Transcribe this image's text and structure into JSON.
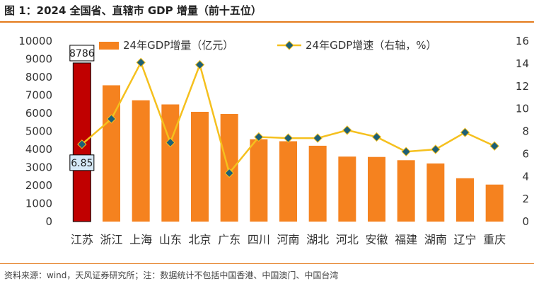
{
  "title": "图 1：2024 全国省、直辖市 GDP 增量（前十五位）",
  "source": "资料来源：wind，天风证券研究所；注：数据统计不包括中国香港、中国澳门、中国台湾",
  "colors": {
    "accent": "#e47a1b",
    "bar": "#f5821f",
    "highlight_bar": "#c00000",
    "line": "#f5c01e",
    "marker": "#1e6076",
    "label_box": "#d6eaf8"
  },
  "chart_data": {
    "type": "bar",
    "categories": [
      "江苏",
      "浙江",
      "上海",
      "山东",
      "北京",
      "广东",
      "四川",
      "河南",
      "湖北",
      "河北",
      "安徽",
      "福建",
      "湖南",
      "辽宁",
      "重庆"
    ],
    "series": [
      {
        "name": "24年GDP增量（亿元）",
        "type": "bar",
        "axis": "left",
        "color": "#f5821f",
        "values": [
          8786,
          7550,
          6720,
          6490,
          6080,
          5960,
          4560,
          4450,
          4200,
          3600,
          3580,
          3400,
          3220,
          2400,
          2050
        ]
      },
      {
        "name": "24年GDP增速（右轴，%）",
        "type": "line",
        "axis": "right",
        "color": "#f5c01e",
        "values": [
          6.85,
          9.1,
          14.1,
          7.0,
          13.9,
          4.3,
          7.5,
          7.4,
          7.4,
          8.1,
          7.5,
          6.2,
          6.4,
          7.9,
          6.7
        ]
      }
    ],
    "y_left": {
      "min": 0,
      "max": 10000,
      "ticks": [
        0,
        1000,
        2000,
        3000,
        4000,
        5000,
        6000,
        7000,
        8000,
        9000,
        10000
      ]
    },
    "y_right": {
      "min": 0,
      "max": 16,
      "ticks": [
        0,
        2,
        4,
        6,
        8,
        10,
        12,
        14,
        16
      ]
    },
    "annotations": [
      {
        "category": "江苏",
        "series": "24年GDP增量（亿元）",
        "label": "8786"
      },
      {
        "category": "江苏",
        "series": "24年GDP增速（右轴，%）",
        "label": "6.85"
      }
    ],
    "grid": false,
    "legend": "top"
  }
}
